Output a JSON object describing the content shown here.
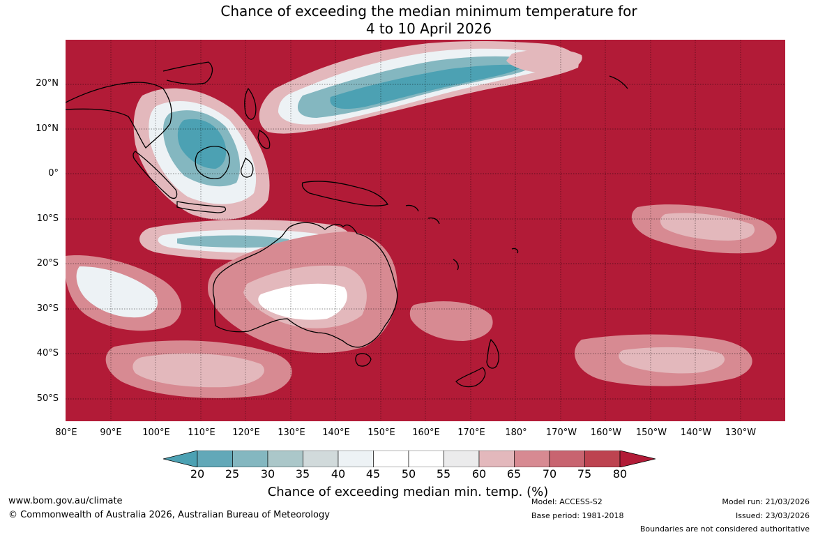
{
  "title_line1": "Chance of exceeding the median minimum temperature for",
  "title_line2": "4 to 10 April 2026",
  "map": {
    "lat_labels": [
      "20°N",
      "10°N",
      "0°",
      "10°S",
      "20°S",
      "30°S",
      "40°S",
      "50°S"
    ],
    "lon_labels": [
      "80°E",
      "90°E",
      "100°E",
      "110°E",
      "120°E",
      "130°E",
      "140°E",
      "150°E",
      "160°E",
      "170°E",
      "180°",
      "170°W",
      "160°W",
      "150°W",
      "140°W",
      "130°W"
    ],
    "colors": {
      "dominant": "#B21B37",
      "water_grid": "#000000"
    }
  },
  "colorbar": {
    "ticks": [
      "20",
      "25",
      "30",
      "35",
      "40",
      "45",
      "50",
      "55",
      "60",
      "65",
      "70",
      "75",
      "80"
    ],
    "colors": [
      "#4CA1B3",
      "#62A8B8",
      "#84B7C0",
      "#ABC7C9",
      "#D1DADB",
      "#EDF2F5",
      "#FFFFFF",
      "#FFFFFF",
      "#EBEBEC",
      "#E3B8BC",
      "#D78A92",
      "#C86470",
      "#BD4350",
      "#B21B37"
    ],
    "label": "Chance of exceeding median min. temp. (%)"
  },
  "footer": {
    "website": "www.bom.gov.au/climate",
    "copyright": "© Commonwealth of Australia 2026, Australian Bureau of Meteorology",
    "model": "Model: ACCESS-S2",
    "base_period": "Base period: 1981-2018",
    "model_run": "Model run: 21/03/2026",
    "issued": "Issued: 23/03/2026",
    "disclaimer": "Boundaries are not considered authoritative"
  }
}
